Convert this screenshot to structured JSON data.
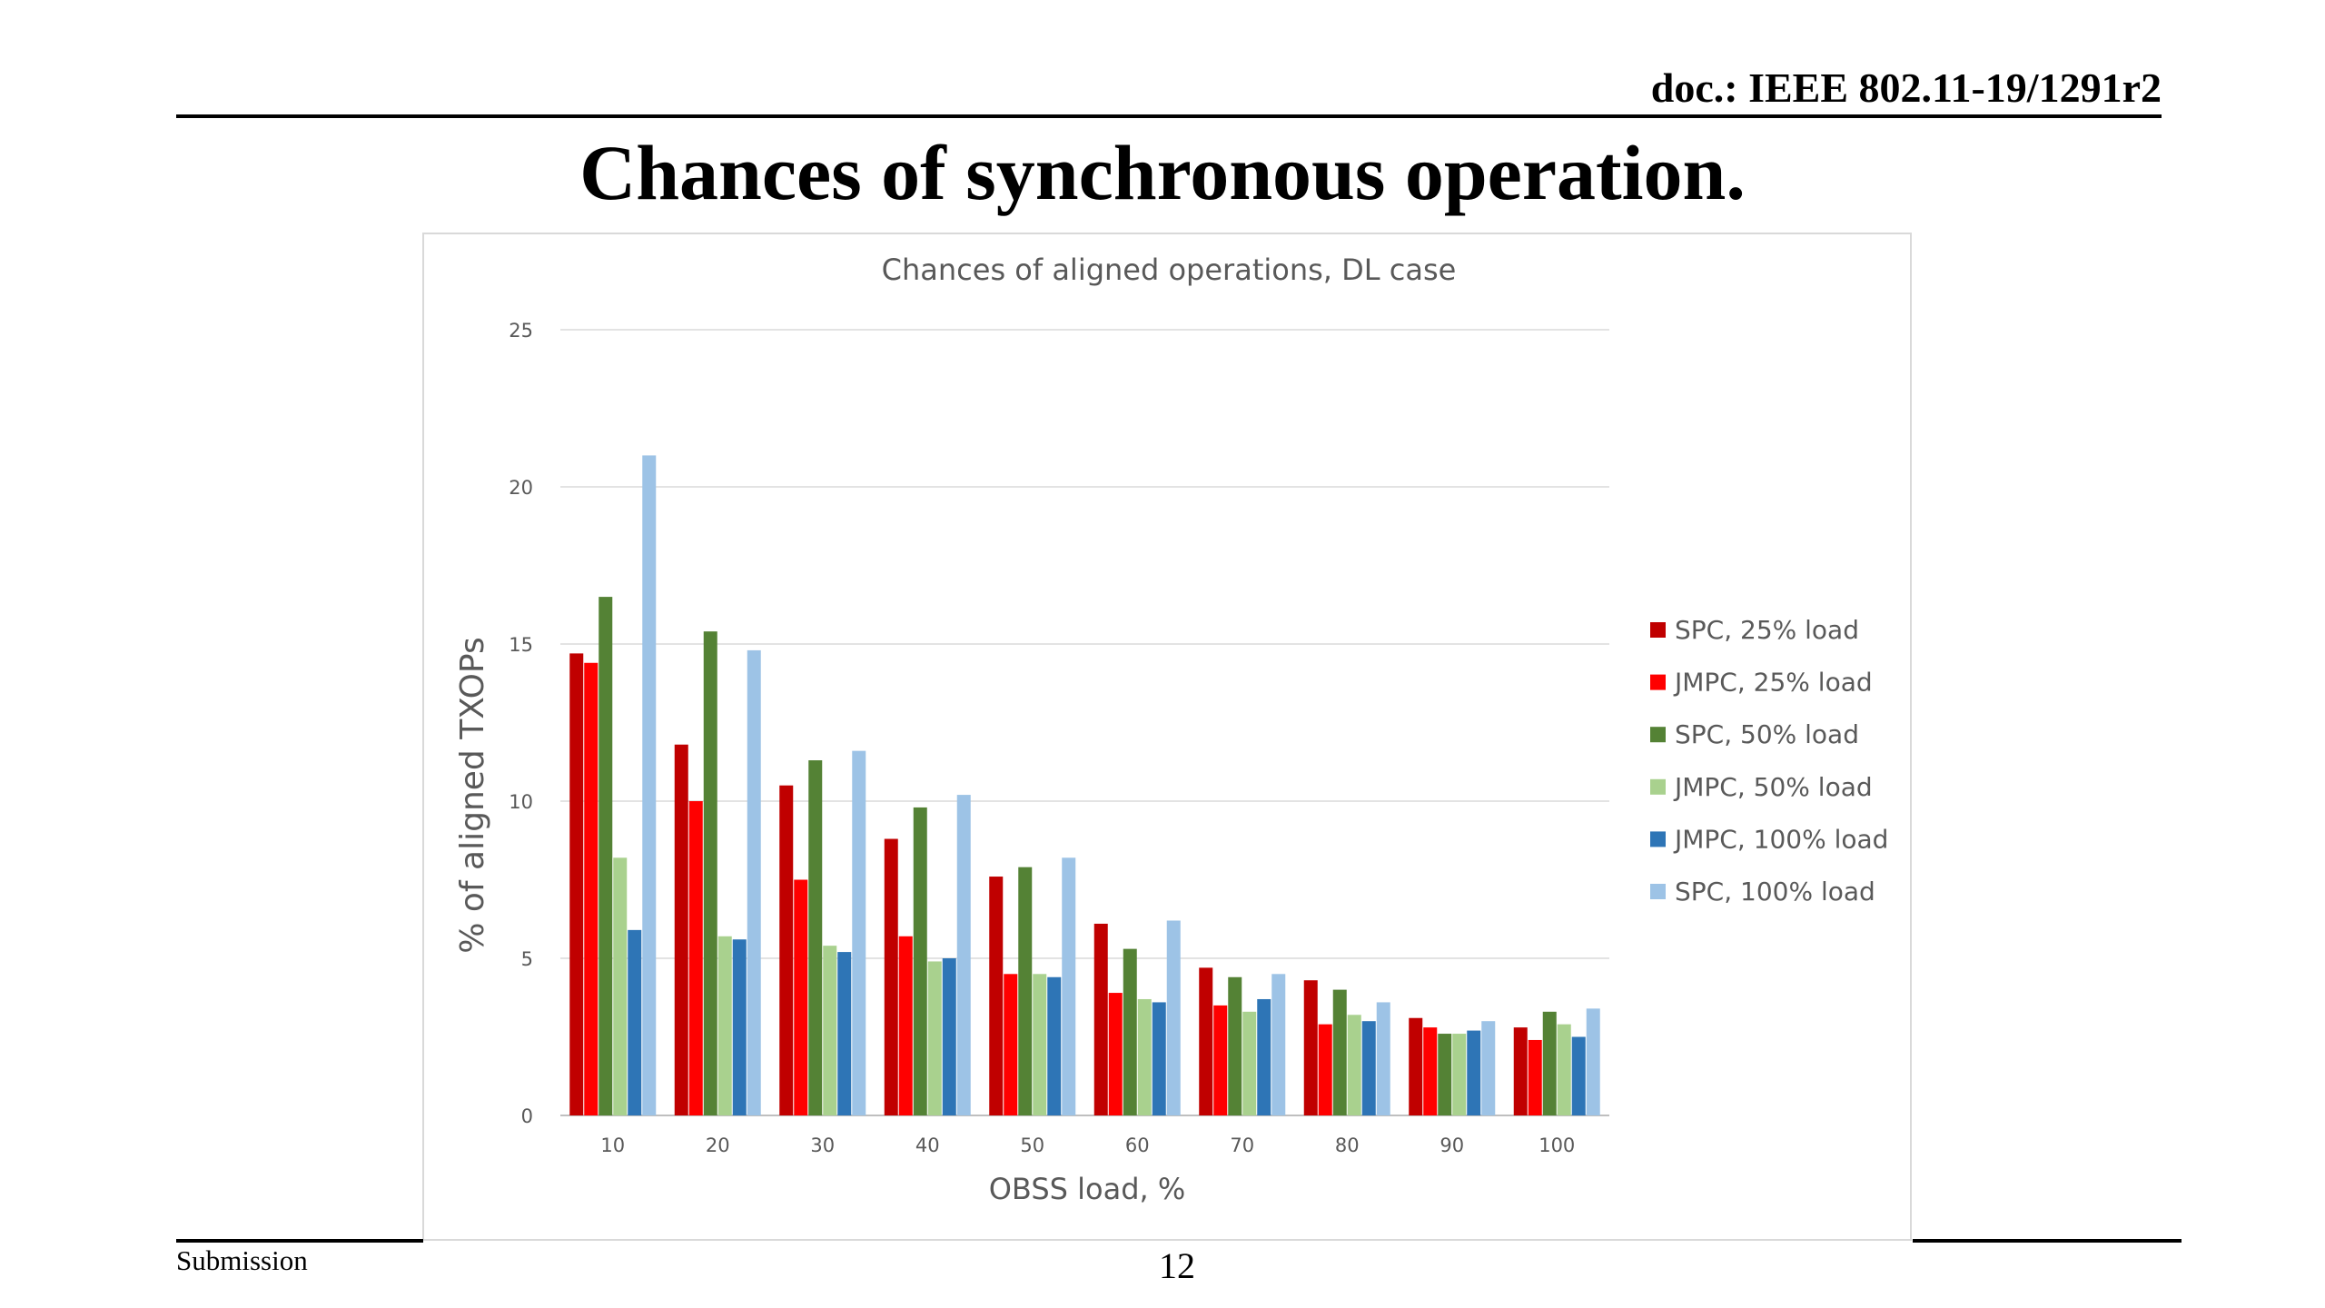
{
  "header": {
    "doc_id": "doc.: IEEE 802.11-19/1291r2",
    "slide_title": "Chances of synchronous operation."
  },
  "footer": {
    "submission": "Submission",
    "page_number": "12"
  },
  "chart_data": {
    "type": "bar",
    "title": "Chances of aligned operations, DL case",
    "xlabel": "OBSS load, %",
    "ylabel": "% of aligned TXOPs",
    "ylim": [
      0,
      25
    ],
    "yticks": [
      0,
      5,
      10,
      15,
      20,
      25
    ],
    "grid": true,
    "legend_position": "right",
    "categories": [
      "10",
      "20",
      "30",
      "40",
      "50",
      "60",
      "70",
      "80",
      "90",
      "100"
    ],
    "series": [
      {
        "name": "SPC, 25% load",
        "color": "#c00000",
        "values": [
          14.7,
          11.8,
          10.5,
          8.8,
          7.6,
          6.1,
          4.7,
          4.3,
          3.1,
          2.8
        ]
      },
      {
        "name": "JMPC, 25% load",
        "color": "#ff0000",
        "values": [
          14.4,
          10.0,
          7.5,
          5.7,
          4.5,
          3.9,
          3.5,
          2.9,
          2.8,
          2.4
        ]
      },
      {
        "name": "SPC, 50% load",
        "color": "#548235",
        "values": [
          16.5,
          15.4,
          11.3,
          9.8,
          7.9,
          5.3,
          4.4,
          4.0,
          2.6,
          3.3
        ]
      },
      {
        "name": "JMPC, 50% load",
        "color": "#a9d18e",
        "values": [
          8.2,
          5.7,
          5.4,
          4.9,
          4.5,
          3.7,
          3.3,
          3.2,
          2.6,
          2.9
        ]
      },
      {
        "name": "JMPC, 100% load",
        "color": "#2e75b6",
        "values": [
          5.9,
          5.6,
          5.2,
          5.0,
          4.4,
          3.6,
          3.7,
          3.0,
          2.7,
          2.5
        ]
      },
      {
        "name": "SPC, 100% load",
        "color": "#9dc3e6",
        "values": [
          21.0,
          14.8,
          11.6,
          10.2,
          8.2,
          6.2,
          4.5,
          3.6,
          3.0,
          3.4
        ]
      }
    ]
  }
}
